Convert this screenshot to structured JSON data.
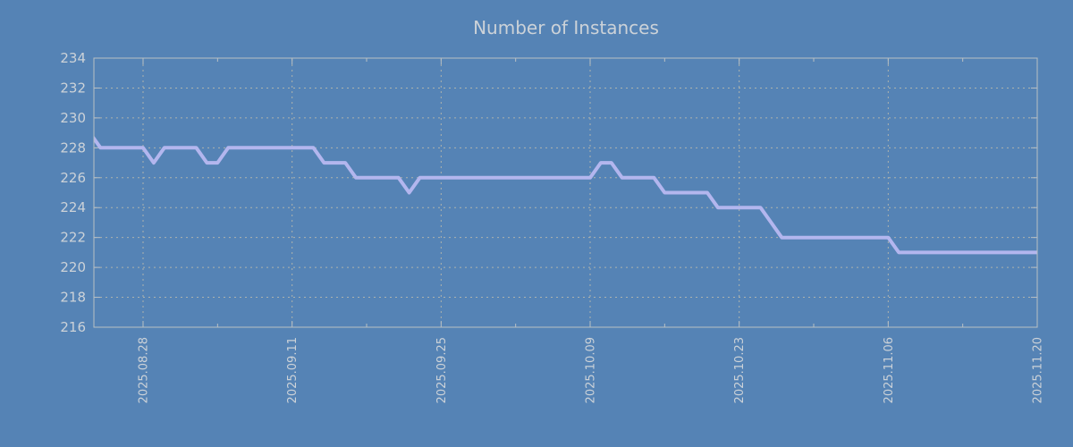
{
  "chart_data": {
    "type": "line",
    "title": "Number of Instances",
    "xlabel": "",
    "ylabel": "",
    "ylim": [
      216,
      234
    ],
    "ytick_step": 2,
    "ytick_labels": [
      "216",
      "218",
      "220",
      "222",
      "224",
      "226",
      "228",
      "230",
      "232",
      "234"
    ],
    "xtick_labels": [
      "2025.08.28",
      "2025.09.11",
      "2025.09.25",
      "2025.10.09",
      "2025.10.23",
      "2025.11.06",
      "2025.11.20"
    ],
    "grid": "dashed",
    "legend_position": "none",
    "x": [
      "2025.08.23",
      "2025.08.24",
      "2025.08.25",
      "2025.08.26",
      "2025.08.27",
      "2025.08.28",
      "2025.08.29",
      "2025.08.30",
      "2025.08.31",
      "2025.09.01",
      "2025.09.02",
      "2025.09.03",
      "2025.09.04",
      "2025.09.05",
      "2025.09.06",
      "2025.09.07",
      "2025.09.08",
      "2025.09.09",
      "2025.09.10",
      "2025.09.11",
      "2025.09.12",
      "2025.09.13",
      "2025.09.14",
      "2025.09.15",
      "2025.09.16",
      "2025.09.17",
      "2025.09.18",
      "2025.09.19",
      "2025.09.20",
      "2025.09.21",
      "2025.09.22",
      "2025.09.23",
      "2025.09.24",
      "2025.09.25",
      "2025.09.26",
      "2025.09.27",
      "2025.09.28",
      "2025.09.29",
      "2025.09.30",
      "2025.10.01",
      "2025.10.02",
      "2025.10.03",
      "2025.10.04",
      "2025.10.05",
      "2025.10.06",
      "2025.10.07",
      "2025.10.08",
      "2025.10.09",
      "2025.10.10",
      "2025.10.11",
      "2025.10.12",
      "2025.10.13",
      "2025.10.14",
      "2025.10.15",
      "2025.10.16",
      "2025.10.17",
      "2025.10.18",
      "2025.10.19",
      "2025.10.20",
      "2025.10.21",
      "2025.10.22",
      "2025.10.23",
      "2025.10.24",
      "2025.10.25",
      "2025.10.26",
      "2025.10.27",
      "2025.10.28",
      "2025.10.29",
      "2025.10.30",
      "2025.10.31",
      "2025.11.01",
      "2025.11.02",
      "2025.11.03",
      "2025.11.04",
      "2025.11.05",
      "2025.11.06",
      "2025.11.07",
      "2025.11.08",
      "2025.11.09",
      "2025.11.10",
      "2025.11.11",
      "2025.11.12",
      "2025.11.13",
      "2025.11.14",
      "2025.11.15",
      "2025.11.16",
      "2025.11.17",
      "2025.11.18",
      "2025.11.19",
      "2025.11.20"
    ],
    "values": [
      229,
      228,
      228,
      228,
      228,
      228,
      227,
      228,
      228,
      228,
      228,
      227,
      227,
      228,
      228,
      228,
      228,
      228,
      228,
      228,
      228,
      228,
      227,
      227,
      227,
      226,
      226,
      226,
      226,
      226,
      225,
      226,
      226,
      226,
      226,
      226,
      226,
      226,
      226,
      226,
      226,
      226,
      226,
      226,
      226,
      226,
      226,
      226,
      227,
      227,
      226,
      226,
      226,
      226,
      225,
      225,
      225,
      225,
      225,
      224,
      224,
      224,
      224,
      224,
      223,
      222,
      222,
      222,
      222,
      222,
      222,
      222,
      222,
      222,
      222,
      222,
      221,
      221,
      221,
      221,
      221,
      221,
      221,
      221,
      221,
      221,
      221,
      221,
      221,
      221
    ],
    "colors": {
      "background": "#5583b5",
      "line": "#b3b6ee",
      "text": "#ccd2d8",
      "grid": "#adb3ae",
      "border": "#b9c0c4"
    }
  }
}
